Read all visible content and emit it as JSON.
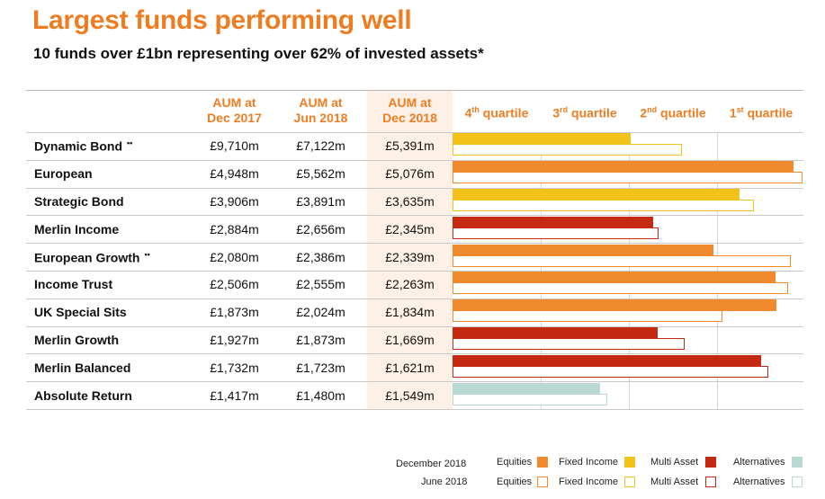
{
  "title": "Largest funds performing well",
  "subtitle": "10 funds over £1bn representing over 62% of invested assets*",
  "columns": {
    "dec2017": [
      "AUM at",
      "Dec 2017"
    ],
    "jun2018": [
      "AUM at",
      "Jun 2018"
    ],
    "dec2018": [
      "AUM at",
      "Dec 2018"
    ]
  },
  "quartiles": [
    {
      "num": "4",
      "sup": "th",
      "label": "quartile"
    },
    {
      "num": "3",
      "sup": "rd",
      "label": "quartile"
    },
    {
      "num": "2",
      "sup": "nd",
      "label": "quartile"
    },
    {
      "num": "1",
      "sup": "st",
      "label": "quartile"
    }
  ],
  "colors": {
    "Equities": "#f08a2c",
    "Fixed Income": "#f2c21b",
    "Multi Asset": "#c42a12",
    "Alternatives": "#b7d9d2",
    "accent": "#ee7d22"
  },
  "chart_data": {
    "type": "table",
    "x_axis": "quartile ranking (4th to 1st)",
    "xlim": [
      0,
      4
    ],
    "rows": [
      {
        "fund": "Dynamic Bond",
        "mark": "••",
        "dec2017": "£9,710m",
        "jun2018": "£7,122m",
        "dec2018": "£5,391m",
        "asset_class": "Fixed Income",
        "dec2018_position": 2.02,
        "jun2018_position": 2.6
      },
      {
        "fund": "European",
        "mark": "",
        "dec2017": "£4,948m",
        "jun2018": "£5,562m",
        "dec2018": "£5,076m",
        "asset_class": "Equities",
        "dec2018_position": 3.87,
        "jun2018_position": 3.97
      },
      {
        "fund": "Strategic Bond",
        "mark": "",
        "dec2017": "£3,906m",
        "jun2018": "£3,891m",
        "dec2018": "£3,635m",
        "asset_class": "Fixed Income",
        "dec2018_position": 3.25,
        "jun2018_position": 3.42
      },
      {
        "fund": "Merlin Income",
        "mark": "",
        "dec2017": "£2,884m",
        "jun2018": "£2,656m",
        "dec2018": "£2,345m",
        "asset_class": "Multi Asset",
        "dec2018_position": 2.28,
        "jun2018_position": 2.34
      },
      {
        "fund": "European Growth",
        "mark": "••",
        "dec2017": "£2,080m",
        "jun2018": "£2,386m",
        "dec2018": "£2,339m",
        "asset_class": "Equities",
        "dec2018_position": 2.96,
        "jun2018_position": 3.84
      },
      {
        "fund": "Income Trust",
        "mark": "",
        "dec2017": "£2,506m",
        "jun2018": "£2,555m",
        "dec2018": "£2,263m",
        "asset_class": "Equities",
        "dec2018_position": 3.66,
        "jun2018_position": 3.81
      },
      {
        "fund": "UK Special Sits",
        "mark": "",
        "dec2017": "£1,873m",
        "jun2018": "£2,024m",
        "dec2018": "£1,834m",
        "asset_class": "Equities",
        "dec2018_position": 3.67,
        "jun2018_position": 3.06
      },
      {
        "fund": "Merlin Growth",
        "mark": "",
        "dec2017": "£1,927m",
        "jun2018": "£1,873m",
        "dec2018": "£1,669m",
        "asset_class": "Multi Asset",
        "dec2018_position": 2.33,
        "jun2018_position": 2.63
      },
      {
        "fund": "Merlin Balanced",
        "mark": "",
        "dec2017": "£1,732m",
        "jun2018": "£1,723m",
        "dec2018": "£1,621m",
        "asset_class": "Multi Asset",
        "dec2018_position": 3.5,
        "jun2018_position": 3.58
      },
      {
        "fund": "Absolute Return",
        "mark": "",
        "dec2017": "£1,417m",
        "jun2018": "£1,480m",
        "dec2018": "£1,549m",
        "asset_class": "Alternatives",
        "dec2018_position": 1.67,
        "jun2018_position": 1.75
      }
    ]
  },
  "legend": {
    "periods": [
      "December 2018",
      "June 2018"
    ],
    "classes": [
      "Equities",
      "Fixed Income",
      "Multi Asset",
      "Alternatives"
    ]
  }
}
